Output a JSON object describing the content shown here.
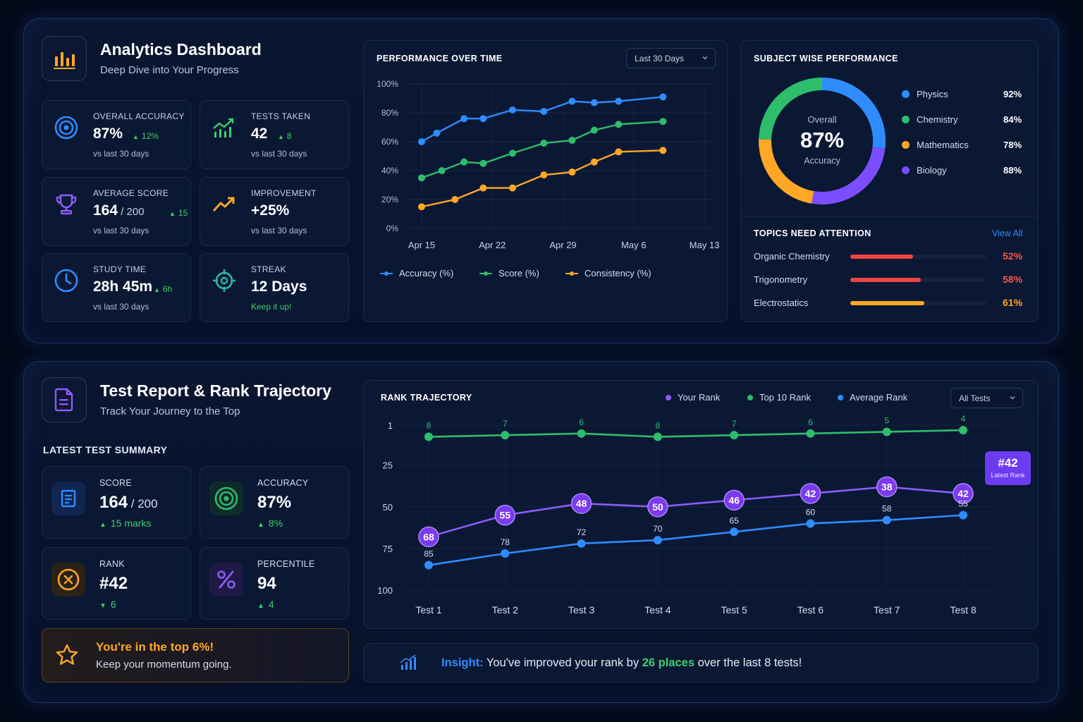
{
  "analytics": {
    "title": "Analytics Dashboard",
    "subtitle": "Deep Dive into Your Progress",
    "stats": [
      {
        "label": "OVERALL ACCURACY",
        "value": "87%",
        "delta": "12%",
        "foot": "vs last 30 days",
        "icon": "target-icon"
      },
      {
        "label": "TESTS TAKEN",
        "value": "42",
        "delta": "8",
        "foot": "vs last 30 days",
        "icon": "trend-chart-icon"
      },
      {
        "label": "AVERAGE SCORE",
        "value": "164",
        "value_suffix": " / 200",
        "delta": "15",
        "foot": "vs last 30 days",
        "icon": "trophy-icon"
      },
      {
        "label": "IMPROVEMENT",
        "value": "+25%",
        "delta": "",
        "foot": "vs last 30 days",
        "icon": "trend-up-icon"
      },
      {
        "label": "STUDY TIME",
        "value": "28h 45m",
        "delta": "6h",
        "foot": "vs last 30 days",
        "icon": "clock-icon"
      },
      {
        "label": "STREAK",
        "value": "12 Days",
        "delta": "",
        "foot": "Keep it up!",
        "icon": "crosshair-icon"
      }
    ]
  },
  "performance": {
    "title": "PERFORMANCE OVER TIME",
    "dropdown": "Last 30 Days"
  },
  "subjects": {
    "title": "SUBJECT WISE PERFORMANCE",
    "center_label": "Overall",
    "center_value": "87%",
    "center_sub": "Accuracy",
    "items": [
      {
        "name": "Physics",
        "pct": "92%",
        "color": "#2f8cff"
      },
      {
        "name": "Chemistry",
        "pct": "84%",
        "color": "#2ebd6b"
      },
      {
        "name": "Mathematics",
        "pct": "78%",
        "color": "#ffa726"
      },
      {
        "name": "Biology",
        "pct": "88%",
        "color": "#7c4dff"
      }
    ]
  },
  "topics": {
    "title": "TOPICS NEED ATTENTION",
    "view_all": "View All",
    "items": [
      {
        "name": "Organic Chemistry",
        "pct": "52%",
        "value": 0.52,
        "color": "#ef4444"
      },
      {
        "name": "Trigonometry",
        "pct": "58%",
        "value": 0.58,
        "color": "#ef4444"
      },
      {
        "name": "Electrostatics",
        "pct": "61%",
        "value": 0.61,
        "color": "#ffa726"
      }
    ]
  },
  "report": {
    "title": "Test Report & Rank Trajectory",
    "subtitle": "Track Your Journey to the Top",
    "summary_title": "LATEST TEST SUMMARY",
    "summary": [
      {
        "label": "SCORE",
        "value": "164",
        "value_suffix": " / 200",
        "delta": "15 marks",
        "dir": "up",
        "icon": "document-icon"
      },
      {
        "label": "ACCURACY",
        "value": "87%",
        "delta": "8%",
        "dir": "up",
        "icon": "target-icon"
      },
      {
        "label": "RANK",
        "value": "#42",
        "delta": "6",
        "dir": "down",
        "icon": "rank-medal-icon"
      },
      {
        "label": "PERCENTILE",
        "value": "94",
        "delta": "4",
        "dir": "up",
        "icon": "percent-icon"
      }
    ],
    "banner_title": "You're in the top 6%!",
    "banner_sub": "Keep your momentum going."
  },
  "rank": {
    "title": "RANK TRAJECTORY",
    "dropdown": "All Tests",
    "badge_value": "#42",
    "badge_label": "Latest Rank"
  },
  "insight": {
    "prefix": "Insight:",
    "text_a": " You've improved your rank by ",
    "highlight": "26 places",
    "text_b": " over the last 8 tests!"
  },
  "chart_data": [
    {
      "type": "line",
      "title": "PERFORMANCE OVER TIME",
      "x_ticks": [
        "Apr 15",
        "Apr 22",
        "Apr 29",
        "May 6",
        "May 13"
      ],
      "y_ticks": [
        "0%",
        "20%",
        "40%",
        "60%",
        "80%",
        "100%"
      ],
      "ylim": [
        0,
        100
      ],
      "x_domain": [
        0,
        28
      ],
      "grid": true,
      "legend": "bottom",
      "series": [
        {
          "name": "Accuracy (%)",
          "color": "#2f8cff",
          "x": [
            0,
            1.5,
            4.2,
            6.1,
            9.0,
            12.1,
            14.9,
            17.1,
            19.5,
            23.9
          ],
          "y": [
            60,
            66,
            76,
            76,
            82,
            81,
            88,
            87,
            88,
            91
          ]
        },
        {
          "name": "Score (%)",
          "color": "#2ebd6b",
          "x": [
            0,
            2,
            4.2,
            6.1,
            9.0,
            12.1,
            14.9,
            17.1,
            19.5,
            23.9
          ],
          "y": [
            35,
            40,
            46,
            45,
            52,
            59,
            61,
            68,
            72,
            74
          ]
        },
        {
          "name": "Consistency (%)",
          "color": "#ffa726",
          "x": [
            0,
            3.3,
            6.1,
            9.0,
            12.1,
            14.9,
            17.1,
            19.5,
            23.9
          ],
          "y": [
            15,
            20,
            28,
            28,
            37,
            39,
            46,
            53,
            54
          ]
        }
      ]
    },
    {
      "type": "pie",
      "title": "SUBJECT WISE PERFORMANCE",
      "labels": [
        "Physics",
        "Biology",
        "Mathematics",
        "Chemistry"
      ],
      "values": [
        92,
        88,
        78,
        84
      ],
      "colors": [
        "#2f8cff",
        "#7c4dff",
        "#ffa726",
        "#2ebd6b"
      ]
    },
    {
      "type": "line",
      "title": "RANK TRAJECTORY",
      "categories": [
        "Test 1",
        "Test 2",
        "Test 3",
        "Test 4",
        "Test 5",
        "Test 6",
        "Test 7",
        "Test 8"
      ],
      "y_ticks": [
        "1",
        "25",
        "50",
        "75",
        "100"
      ],
      "ylim": [
        100,
        1
      ],
      "legend": "top",
      "series": [
        {
          "name": "Your Rank",
          "color": "#8b5cf6",
          "values": [
            68,
            55,
            48,
            50,
            46,
            42,
            38,
            42
          ]
        },
        {
          "name": "Top 10 Rank",
          "color": "#2ebd6b",
          "values": [
            8,
            7,
            6,
            8,
            7,
            6,
            5,
            4
          ]
        },
        {
          "name": "Average Rank",
          "color": "#2f8cff",
          "values": [
            85,
            78,
            72,
            70,
            65,
            60,
            58,
            55
          ]
        }
      ]
    }
  ]
}
